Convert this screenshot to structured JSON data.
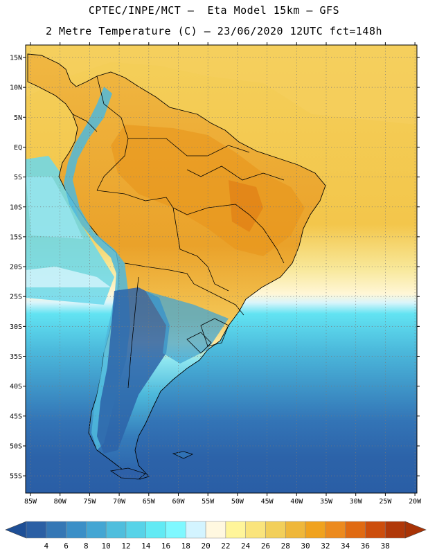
{
  "header": {
    "line1": "CPTEC/INPE/MCT –  Eta Model 15km – GFS",
    "line2": "2 Metre Temperature (C) – 23/06/2020 12UTC fct=148h"
  },
  "axes": {
    "lat_labels": [
      "15N",
      "10N",
      "5N",
      "EQ",
      "5S",
      "10S",
      "15S",
      "20S",
      "25S",
      "30S",
      "35S",
      "40S",
      "45S",
      "50S",
      "55S"
    ],
    "lon_labels": [
      "85W",
      "80W",
      "75W",
      "70W",
      "65W",
      "60W",
      "55W",
      "50W",
      "45W",
      "40W",
      "35W",
      "30W",
      "25W",
      "20W"
    ]
  },
  "colorbar": {
    "levels": [
      "4",
      "6",
      "8",
      "10",
      "12",
      "14",
      "16",
      "18",
      "20",
      "22",
      "24",
      "26",
      "28",
      "30",
      "32",
      "34",
      "36",
      "38"
    ],
    "colors": [
      "#2b5fa4",
      "#3577b5",
      "#3b8fc7",
      "#44a6d3",
      "#4fbedd",
      "#57d3e8",
      "#62eaf4",
      "#7ff8ff",
      "#d3f4ff",
      "#fff8e0",
      "#fff59a",
      "#fae47c",
      "#f2cf5a",
      "#efb73a",
      "#f0a21e",
      "#ec8a1e",
      "#e06a12",
      "#cc4d0c",
      "#b03809"
    ],
    "below_color": "#1e4f96",
    "above_color": "#a83306"
  },
  "map": {
    "ocean_zones": [
      {
        "name": "tropical-warm",
        "color": "#f2c54c"
      },
      {
        "name": "cool-subtropical",
        "color": "#5fd1ea"
      },
      {
        "name": "cold-southern",
        "color": "#2e65ac"
      }
    ],
    "land_color": "#e8a22d",
    "andes_color": "#5bc6e0",
    "patagonia_color": "#2c5ea6"
  }
}
